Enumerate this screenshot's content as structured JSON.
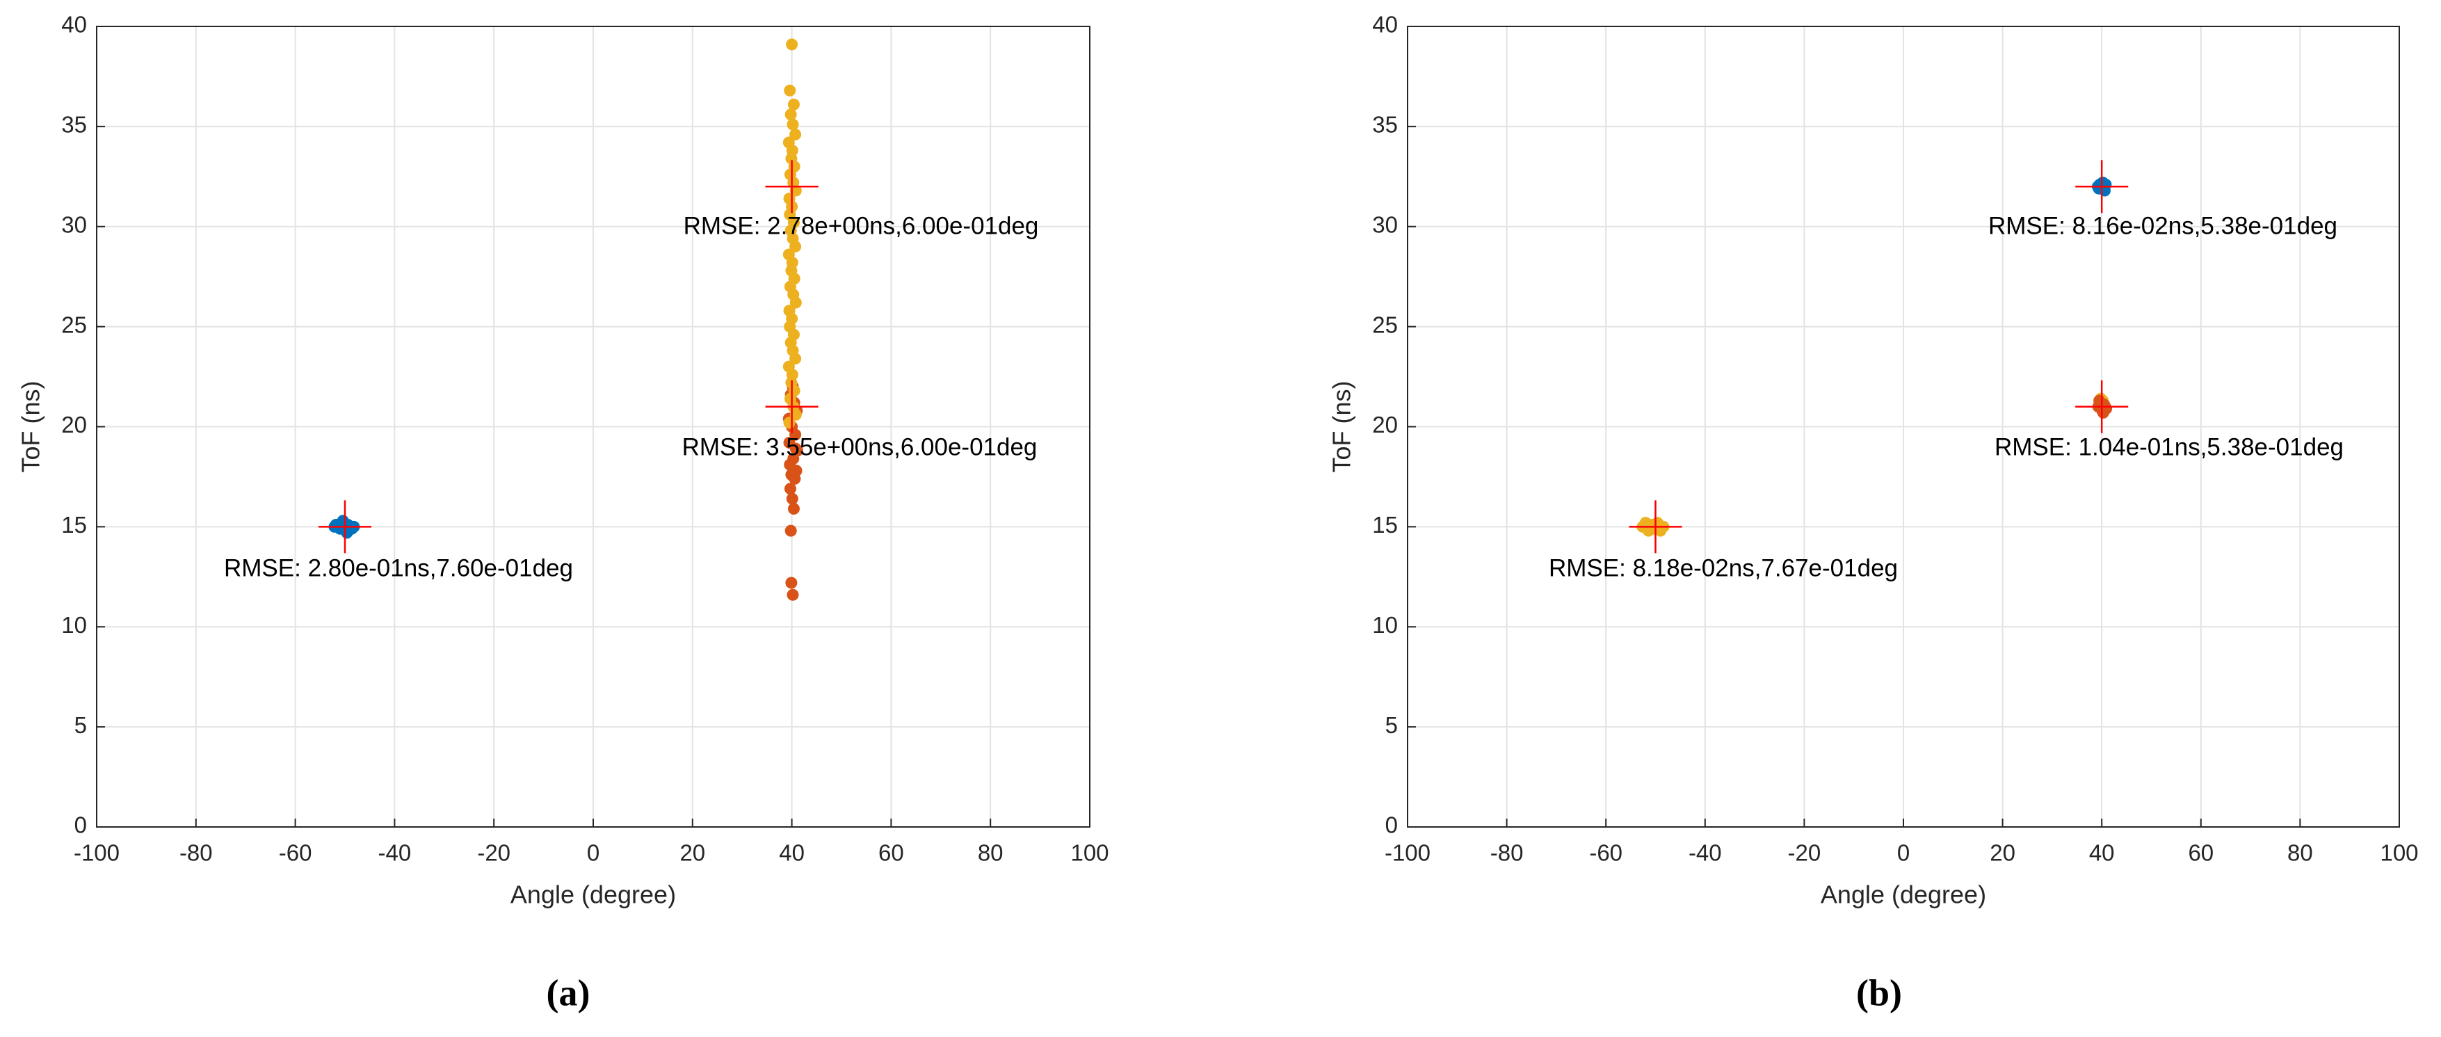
{
  "chart_data": [
    {
      "type": "scatter",
      "caption": "(a)",
      "x_label": "Angle (degree)",
      "y_label": "ToF (ns)",
      "xlim": [
        -100,
        100
      ],
      "xticks": [
        -100,
        -80,
        -60,
        -40,
        -20,
        0,
        20,
        40,
        60,
        80,
        100
      ],
      "ylim": [
        0,
        40
      ],
      "yticks": [
        0,
        5,
        10,
        15,
        20,
        25,
        30,
        35,
        40
      ],
      "grid": true,
      "series": [
        {
          "color": "#0072bd",
          "x": [
            -52.1,
            -51.5,
            -51,
            -50.6,
            -50.2,
            -49.8,
            -49.4,
            -49,
            -48.6,
            -48.2,
            -50.4,
            -49.6,
            -51.8,
            -48.9
          ],
          "y": [
            15,
            15.1,
            14.9,
            15.2,
            15,
            14.8,
            15.1,
            15,
            14.9,
            15,
            15.3,
            14.7,
            15.1,
            15
          ]
        },
        {
          "color": "#d95319",
          "x": [
            40.2,
            39.9,
            39.8,
            40.4,
            40.1,
            39.7,
            40.6,
            40.9,
            39.6,
            40.3,
            41.1,
            39.5,
            40.7,
            40.0,
            39.4,
            41.0,
            40.5,
            39.8,
            40.2,
            39.9,
            40.8
          ],
          "y": [
            11.6,
            12.2,
            14.8,
            15.9,
            16.4,
            16.9,
            17.4,
            17.8,
            18.1,
            18.4,
            18.8,
            19.2,
            19.6,
            20.0,
            20.4,
            20.8,
            21.2,
            21.6,
            22.0,
            17.6,
            18.9
          ]
        },
        {
          "color": "#edb120",
          "x": [
            40.0,
            39.6,
            40.4,
            39.8,
            40.2,
            40.7,
            39.4,
            40.1,
            39.9,
            40.5,
            39.7,
            40.3,
            40.8,
            39.5,
            40.0,
            39.6,
            40.4,
            39.8,
            40.2,
            40.7,
            39.4,
            40.1,
            39.9,
            40.5,
            39.7,
            40.3,
            40.8,
            39.5,
            40.0,
            39.6,
            40.4,
            39.8,
            40.2,
            40.7,
            39.4,
            40.1,
            39.9,
            40.5,
            39.7,
            40.3,
            40.8,
            39.5
          ],
          "y": [
            39.1,
            36.8,
            36.1,
            35.6,
            35.1,
            34.6,
            34.2,
            33.8,
            33.4,
            33.0,
            32.6,
            32.2,
            31.8,
            31.4,
            31.0,
            30.6,
            30.2,
            29.8,
            29.4,
            29.0,
            28.6,
            28.2,
            27.8,
            27.4,
            27.0,
            26.6,
            26.2,
            25.8,
            25.4,
            25.0,
            24.6,
            24.2,
            23.8,
            23.4,
            23.0,
            22.6,
            22.2,
            21.8,
            21.4,
            21.0,
            20.6,
            20.2
          ]
        }
      ],
      "markers": {
        "color": "#ff0000",
        "x": [
          -50,
          40,
          40
        ],
        "y": [
          15,
          32,
          21
        ]
      },
      "annotations": [
        "RMSE: 2.78e+00ns,6.00e-01deg",
        "RMSE: 3.55e+00ns,6.00e-01deg",
        "RMSE: 2.80e-01ns,7.60e-01deg"
      ]
    },
    {
      "type": "scatter",
      "caption": "(b)",
      "x_label": "Angle (degree)",
      "y_label": "ToF (ns)",
      "xlim": [
        -100,
        100
      ],
      "xticks": [
        -100,
        -80,
        -60,
        -40,
        -20,
        0,
        20,
        40,
        60,
        80,
        100
      ],
      "ylim": [
        0,
        40
      ],
      "yticks": [
        0,
        5,
        10,
        15,
        20,
        25,
        30,
        35,
        40
      ],
      "grid": true,
      "series": [
        {
          "color": "#0072bd",
          "x": [
            39.2,
            39.6,
            40,
            40.4,
            40.8,
            39.4,
            40.2,
            40.6,
            39.8,
            40.1
          ],
          "y": [
            32,
            32.1,
            31.9,
            32,
            32.1,
            31.9,
            32.2,
            31.8,
            32,
            32
          ]
        },
        {
          "color": "#edb120",
          "x": [
            -52.6,
            -52,
            -51.4,
            -50.8,
            -50.2,
            -49.6,
            -49,
            -48.4,
            -51.1,
            -49.3,
            39.6,
            40.2,
            40.0,
            39.8
          ],
          "y": [
            15,
            15.2,
            14.8,
            15.1,
            14.9,
            15.2,
            14.8,
            15,
            15,
            15.1,
            21.2,
            21.3,
            21.1,
            21.4
          ]
        },
        {
          "color": "#d95319",
          "x": [
            39.3,
            39.7,
            40.1,
            40.5,
            40.9,
            39.5,
            40.3,
            40.7,
            39.9,
            40.0
          ],
          "y": [
            21,
            21.2,
            20.8,
            21.1,
            20.9,
            21.3,
            20.7,
            21,
            21.1,
            20.9
          ]
        }
      ],
      "markers": {
        "color": "#ff0000",
        "x": [
          -50,
          40,
          40
        ],
        "y": [
          15,
          32,
          21
        ]
      },
      "annotations": [
        "RMSE: 8.16e-02ns,5.38e-01deg",
        "RMSE: 1.04e-01ns,5.38e-01deg",
        "RMSE: 8.18e-02ns,7.67e-01deg"
      ]
    }
  ]
}
